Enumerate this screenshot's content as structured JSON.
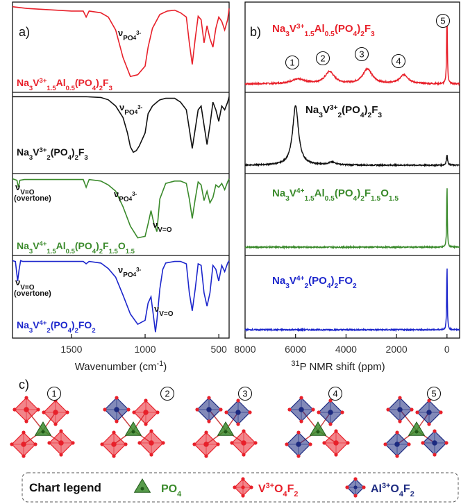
{
  "chart_data": [
    {
      "panel": "a)",
      "type": "line",
      "xlabel": "Wavenumber (cm-1)",
      "xlabel_parts": {
        "main": "Wavenumber (cm",
        "sup": "-1",
        "close": ")"
      },
      "xlim": [
        1900,
        430
      ],
      "x_ticks": [
        1500,
        1000,
        500
      ],
      "x_tick_labels": [
        "1500",
        "1000",
        "500"
      ],
      "series": [
        {
          "name": "Na3V3+1.5Al0.5(PO4)2F3",
          "color": "#e8202a",
          "annotations": [
            {
              "text": "νPO43-",
              "at": 1090
            }
          ],
          "x": [
            1900,
            1800,
            1700,
            1600,
            1500,
            1420,
            1400,
            1380,
            1300,
            1250,
            1200,
            1150,
            1100,
            1050,
            1000,
            980,
            950,
            900,
            850,
            800,
            760,
            720,
            700,
            680,
            660,
            640,
            620,
            600,
            580,
            560,
            540,
            520,
            500,
            480,
            460,
            440,
            430
          ],
          "y": [
            0.97,
            0.95,
            0.94,
            0.93,
            0.92,
            0.92,
            0.85,
            0.92,
            0.9,
            0.85,
            0.7,
            0.38,
            0.16,
            0.18,
            0.28,
            0.5,
            0.72,
            0.88,
            0.92,
            0.93,
            0.9,
            0.85,
            0.55,
            0.3,
            0.6,
            0.86,
            0.82,
            0.55,
            0.75,
            0.6,
            0.5,
            0.72,
            0.85,
            0.8,
            0.7,
            0.82,
            0.95
          ]
        },
        {
          "name": "Na3V3+2(PO4)2F3",
          "color": "#111111",
          "annotations": [
            {
              "text": "νPO43-",
              "at": 1060
            }
          ],
          "x": [
            1900,
            1600,
            1400,
            1300,
            1250,
            1200,
            1150,
            1120,
            1100,
            1080,
            1060,
            1040,
            1000,
            980,
            950,
            920,
            900,
            860,
            800,
            760,
            720,
            700,
            680,
            660,
            640,
            620,
            600,
            580,
            560,
            540,
            520,
            500,
            480,
            460,
            440,
            430
          ],
          "y": [
            0.97,
            0.97,
            0.97,
            0.96,
            0.93,
            0.85,
            0.7,
            0.5,
            0.32,
            0.25,
            0.27,
            0.33,
            0.5,
            0.75,
            0.85,
            0.9,
            0.93,
            0.95,
            0.95,
            0.9,
            0.8,
            0.55,
            0.3,
            0.55,
            0.8,
            0.85,
            0.6,
            0.35,
            0.6,
            0.9,
            0.8,
            0.65,
            0.85,
            0.8,
            0.9,
            0.97
          ]
        },
        {
          "name": "Na3V4+1.5Al0.5(PO4)2F1.5O1.5",
          "color": "#3a8a2b",
          "annotations": [
            {
              "text": "νV=O (overtone)",
              "at": 1860
            },
            {
              "text": "νPO43-",
              "at": 1110
            },
            {
              "text": "νV=O",
              "at": 940
            }
          ],
          "x": [
            1900,
            1870,
            1860,
            1850,
            1820,
            1700,
            1600,
            1500,
            1420,
            1400,
            1380,
            1300,
            1250,
            1200,
            1150,
            1100,
            1050,
            1000,
            980,
            960,
            940,
            920,
            900,
            860,
            800,
            760,
            720,
            700,
            680,
            660,
            640,
            620,
            600,
            580,
            560,
            540,
            520,
            500,
            480,
            460,
            440,
            430
          ],
          "y": [
            0.96,
            0.94,
            0.85,
            0.94,
            0.95,
            0.95,
            0.95,
            0.95,
            0.95,
            0.85,
            0.95,
            0.93,
            0.88,
            0.8,
            0.6,
            0.35,
            0.2,
            0.22,
            0.38,
            0.55,
            0.38,
            0.28,
            0.7,
            0.9,
            0.93,
            0.93,
            0.9,
            0.7,
            0.45,
            0.7,
            0.92,
            0.88,
            0.68,
            0.8,
            0.65,
            0.72,
            0.88,
            0.85,
            0.9,
            0.82,
            0.92,
            0.96
          ]
        },
        {
          "name": "Na3V4+2(PO4)2FO2",
          "color": "#1c26cc",
          "annotations": [
            {
              "text": "νPO43-",
              "at": 1110
            },
            {
              "text": "νV=O (overtone)",
              "at": 1860
            },
            {
              "text": "νV=O",
              "at": 930
            }
          ],
          "x": [
            1900,
            1880,
            1865,
            1855,
            1845,
            1830,
            1800,
            1700,
            1600,
            1500,
            1420,
            1400,
            1380,
            1300,
            1250,
            1200,
            1150,
            1100,
            1050,
            1000,
            980,
            960,
            940,
            930,
            920,
            900,
            880,
            860,
            800,
            760,
            720,
            700,
            680,
            660,
            640,
            620,
            600,
            580,
            560,
            540,
            520,
            500,
            480,
            460,
            440,
            430
          ],
          "y": [
            0.96,
            0.95,
            0.7,
            0.85,
            0.96,
            0.95,
            0.95,
            0.95,
            0.95,
            0.95,
            0.95,
            0.92,
            0.95,
            0.93,
            0.86,
            0.75,
            0.52,
            0.28,
            0.15,
            0.2,
            0.42,
            0.5,
            0.2,
            0.05,
            0.2,
            0.6,
            0.85,
            0.93,
            0.95,
            0.95,
            0.92,
            0.55,
            0.32,
            0.6,
            0.92,
            0.9,
            0.55,
            0.38,
            0.55,
            0.9,
            0.85,
            0.7,
            0.9,
            0.82,
            0.93,
            0.96
          ]
        }
      ]
    },
    {
      "panel": "b)",
      "type": "line",
      "xlabel": "31P NMR shift (ppm)",
      "xlabel_parts": {
        "sup": "31",
        "main": "P NMR shift (ppm)"
      },
      "xlim": [
        8000,
        -500
      ],
      "x_ticks": [
        8000,
        6000,
        4000,
        2000,
        0
      ],
      "x_tick_labels": [
        "8000",
        "6000",
        "4000",
        "2000",
        "0"
      ],
      "peak_markers": [
        {
          "label": "1",
          "x": 6000
        },
        {
          "label": "2",
          "x": 4600
        },
        {
          "label": "3",
          "x": 3100
        },
        {
          "label": "4",
          "x": 1650
        },
        {
          "label": "5",
          "x": 0
        }
      ],
      "series": [
        {
          "name": "Na3V3+1.5Al0.5(PO4)2F3",
          "color": "#e8202a",
          "peaks": [
            {
              "x": 5900,
              "h": 0.06,
              "w": 350
            },
            {
              "x": 4650,
              "h": 0.16,
              "w": 220
            },
            {
              "x": 3150,
              "h": 0.2,
              "w": 220
            },
            {
              "x": 1700,
              "h": 0.12,
              "w": 200
            },
            {
              "x": 0,
              "h": 0.95,
              "w": 18
            }
          ]
        },
        {
          "name": "Na3V3+2(PO4)2F3",
          "color": "#111111",
          "peaks": [
            {
              "x": 6000,
              "h": 0.9,
              "w": 140
            },
            {
              "x": 4550,
              "h": 0.04,
              "w": 200
            },
            {
              "x": 0,
              "h": 0.15,
              "w": 30
            }
          ]
        },
        {
          "name": "Na3V4+1.5Al0.5(PO4)2F1.5O1.5",
          "color": "#3a8a2b",
          "peaks": [
            {
              "x": 0,
              "h": 0.95,
              "w": 15
            }
          ]
        },
        {
          "name": "Na3V4+2(PO4)2FO2",
          "color": "#1c26cc",
          "peaks": [
            {
              "x": 0,
              "h": 0.97,
              "w": 15
            }
          ]
        }
      ]
    }
  ],
  "panel_c": {
    "label": "c)",
    "structures": [
      "1",
      "2",
      "3",
      "4",
      "5"
    ]
  },
  "legend": {
    "title": "Chart legend",
    "items": [
      {
        "label": "PO4",
        "color": "#3a8a2b",
        "icon": "po4-tetrahedron-icon"
      },
      {
        "label": "V3+O4F2",
        "color": "#e8202a",
        "icon": "vo4f2-octahedron-icon"
      },
      {
        "label": "Al3+O4F2",
        "color": "#1c2a80",
        "icon": "alo4f2-octahedron-icon"
      }
    ]
  }
}
